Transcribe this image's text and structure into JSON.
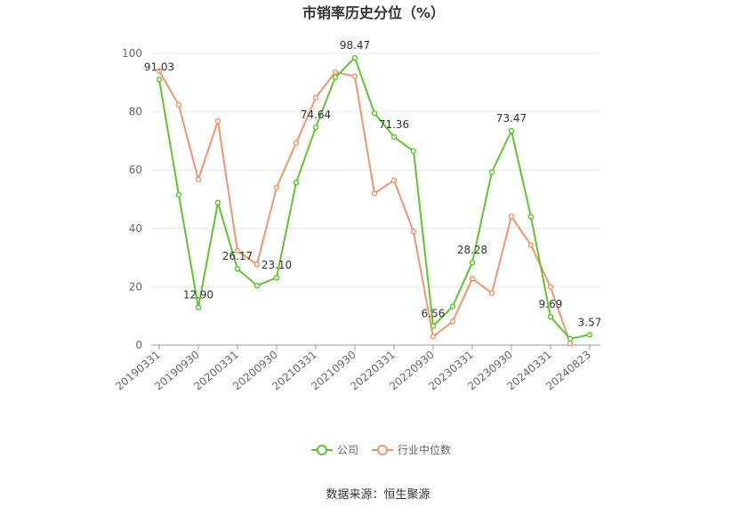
{
  "chart_data": {
    "type": "line",
    "title": "市销率历史分位（%）",
    "source": "数据来源：恒生聚源",
    "ylim": [
      0,
      100
    ],
    "yticks": [
      0,
      20,
      40,
      60,
      80,
      100
    ],
    "grid": true,
    "legend_position": "bottom-center",
    "x": [
      "20190331",
      "20190630",
      "20190930",
      "20191231",
      "20200331",
      "20200630",
      "20200930",
      "20201231",
      "20210331",
      "20210630",
      "20210930",
      "20211231",
      "20220331",
      "20220630",
      "20220930",
      "20221231",
      "20230331",
      "20230630",
      "20230930",
      "20231231",
      "20240331",
      "20240630",
      "20240823"
    ],
    "xtick_labels": [
      "20190331",
      "20190930",
      "20200331",
      "20200930",
      "20210331",
      "20210930",
      "20220331",
      "20220930",
      "20230331",
      "20230930",
      "20240331",
      "20240823"
    ],
    "series": [
      {
        "name": "公司",
        "color": "#5cc62c",
        "values": [
          91.03,
          51.5,
          12.9,
          48.8,
          26.17,
          20.4,
          23.1,
          55.7,
          74.64,
          91.8,
          98.47,
          79.5,
          71.36,
          66.5,
          6.56,
          13.3,
          28.28,
          59.3,
          73.47,
          44.0,
          9.69,
          2.2,
          3.57
        ],
        "labels": {
          "0": "91.03",
          "2": "12.90",
          "4": "26.17",
          "6": "23.10",
          "8": "74.64",
          "10": "98.47",
          "12": "71.36",
          "14": "6.56",
          "16": "28.28",
          "18": "73.47",
          "20": "9.69",
          "22": "3.57"
        }
      },
      {
        "name": "行业中位数",
        "color": "#f0956b",
        "values": [
          94.0,
          82.3,
          56.8,
          76.8,
          32.3,
          27.7,
          54.0,
          69.3,
          84.8,
          93.6,
          92.1,
          52.0,
          56.5,
          38.9,
          2.9,
          8.1,
          22.8,
          17.8,
          44.1,
          34.3,
          19.9,
          0.6,
          null
        ]
      }
    ]
  }
}
